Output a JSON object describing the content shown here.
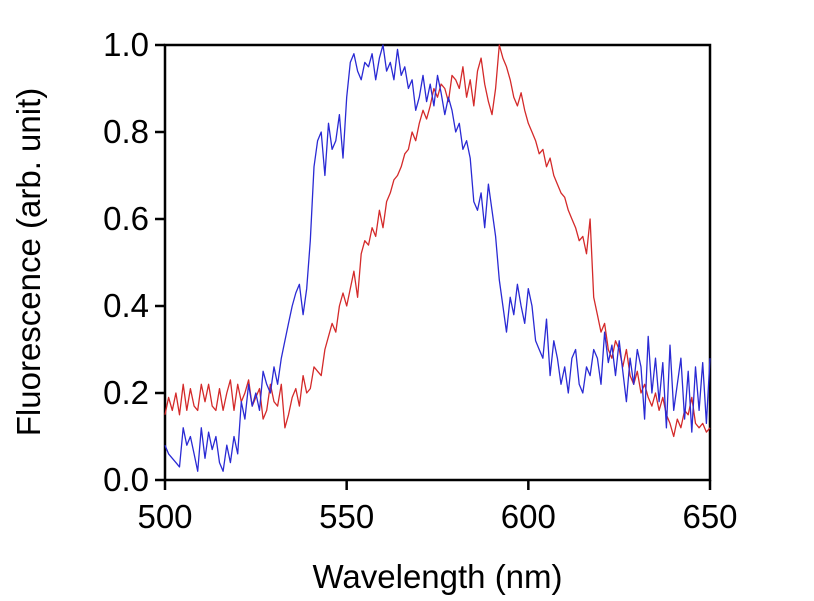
{
  "chart_data": {
    "type": "line",
    "title": "",
    "xlabel": "Wavelength (nm)",
    "ylabel": "Fluorescence (arb. unit)",
    "xlim": [
      500,
      650
    ],
    "ylim": [
      0.0,
      1.0
    ],
    "x_ticks": [
      "500",
      "550",
      "600",
      "650"
    ],
    "y_ticks": [
      "0.0",
      "0.2",
      "0.4",
      "0.6",
      "0.8",
      "1.0"
    ],
    "grid": false,
    "legend": "none",
    "series": [
      {
        "color": "#d42a2a",
        "x": [
          500,
          501,
          502,
          503,
          504,
          505,
          506,
          507,
          508,
          509,
          510,
          511,
          512,
          513,
          514,
          515,
          516,
          517,
          518,
          519,
          520,
          521,
          522,
          523,
          524,
          525,
          526,
          527,
          528,
          529,
          530,
          531,
          532,
          533,
          534,
          535,
          536,
          537,
          538,
          539,
          540,
          541,
          542,
          543,
          544,
          545,
          546,
          547,
          548,
          549,
          550,
          551,
          552,
          553,
          554,
          555,
          556,
          557,
          558,
          559,
          560,
          561,
          562,
          563,
          564,
          565,
          566,
          567,
          568,
          569,
          570,
          571,
          572,
          573,
          574,
          575,
          576,
          577,
          578,
          579,
          580,
          581,
          582,
          583,
          584,
          585,
          586,
          587,
          588,
          589,
          590,
          591,
          592,
          593,
          594,
          595,
          596,
          597,
          598,
          599,
          600,
          601,
          602,
          603,
          604,
          605,
          606,
          607,
          608,
          609,
          610,
          611,
          612,
          613,
          614,
          615,
          616,
          617,
          618,
          619,
          620,
          621,
          622,
          623,
          624,
          625,
          626,
          627,
          628,
          629,
          630,
          631,
          632,
          633,
          634,
          635,
          636,
          637,
          638,
          639,
          640,
          641,
          642,
          643,
          644,
          645,
          646,
          647,
          648,
          649,
          650
        ],
        "y": [
          0.15,
          0.19,
          0.16,
          0.2,
          0.15,
          0.22,
          0.16,
          0.21,
          0.17,
          0.16,
          0.22,
          0.18,
          0.22,
          0.17,
          0.16,
          0.21,
          0.16,
          0.2,
          0.23,
          0.16,
          0.22,
          0.18,
          0.2,
          0.23,
          0.17,
          0.19,
          0.21,
          0.14,
          0.16,
          0.22,
          0.18,
          0.17,
          0.22,
          0.12,
          0.15,
          0.19,
          0.21,
          0.17,
          0.24,
          0.2,
          0.21,
          0.26,
          0.25,
          0.24,
          0.3,
          0.33,
          0.36,
          0.34,
          0.4,
          0.43,
          0.4,
          0.44,
          0.48,
          0.42,
          0.52,
          0.55,
          0.54,
          0.58,
          0.56,
          0.62,
          0.58,
          0.64,
          0.66,
          0.69,
          0.7,
          0.72,
          0.75,
          0.76,
          0.8,
          0.78,
          0.82,
          0.85,
          0.83,
          0.86,
          0.9,
          0.88,
          0.91,
          0.9,
          0.87,
          0.93,
          0.92,
          0.9,
          0.95,
          0.88,
          0.92,
          0.86,
          0.94,
          0.97,
          0.91,
          0.87,
          0.84,
          0.9,
          1.0,
          0.97,
          0.95,
          0.92,
          0.88,
          0.86,
          0.89,
          0.85,
          0.82,
          0.8,
          0.78,
          0.75,
          0.76,
          0.72,
          0.74,
          0.7,
          0.68,
          0.66,
          0.65,
          0.62,
          0.6,
          0.58,
          0.55,
          0.56,
          0.52,
          0.6,
          0.42,
          0.38,
          0.34,
          0.36,
          0.3,
          0.28,
          0.32,
          0.3,
          0.26,
          0.3,
          0.24,
          0.22,
          0.25,
          0.2,
          0.22,
          0.19,
          0.17,
          0.2,
          0.16,
          0.19,
          0.15,
          0.13,
          0.1,
          0.14,
          0.12,
          0.16,
          0.15,
          0.19,
          0.13,
          0.12,
          0.13,
          0.11,
          0.12
        ]
      },
      {
        "color": "#2a2ad4",
        "x": [
          500,
          501,
          502,
          503,
          504,
          505,
          506,
          507,
          508,
          509,
          510,
          511,
          512,
          513,
          514,
          515,
          516,
          517,
          518,
          519,
          520,
          521,
          522,
          523,
          524,
          525,
          526,
          527,
          528,
          529,
          530,
          531,
          532,
          533,
          534,
          535,
          536,
          537,
          538,
          539,
          540,
          541,
          542,
          543,
          544,
          545,
          546,
          547,
          548,
          549,
          550,
          551,
          552,
          553,
          554,
          555,
          556,
          557,
          558,
          559,
          560,
          561,
          562,
          563,
          564,
          565,
          566,
          567,
          568,
          569,
          570,
          571,
          572,
          573,
          574,
          575,
          576,
          577,
          578,
          579,
          580,
          581,
          582,
          583,
          584,
          585,
          586,
          587,
          588,
          589,
          590,
          591,
          592,
          593,
          594,
          595,
          596,
          597,
          598,
          599,
          600,
          601,
          602,
          603,
          604,
          605,
          606,
          607,
          608,
          609,
          610,
          611,
          612,
          613,
          614,
          615,
          616,
          617,
          618,
          619,
          620,
          621,
          622,
          623,
          624,
          625,
          626,
          627,
          628,
          629,
          630,
          631,
          632,
          633,
          634,
          635,
          636,
          637,
          638,
          639,
          640,
          641,
          642,
          643,
          644,
          645,
          646,
          647,
          648,
          649,
          650
        ],
        "y": [
          0.08,
          0.06,
          0.05,
          0.04,
          0.03,
          0.12,
          0.08,
          0.1,
          0.06,
          0.02,
          0.12,
          0.05,
          0.11,
          0.07,
          0.1,
          0.04,
          0.02,
          0.08,
          0.04,
          0.1,
          0.06,
          0.18,
          0.14,
          0.22,
          0.17,
          0.2,
          0.16,
          0.25,
          0.22,
          0.2,
          0.26,
          0.22,
          0.28,
          0.32,
          0.36,
          0.4,
          0.43,
          0.45,
          0.38,
          0.44,
          0.55,
          0.72,
          0.78,
          0.8,
          0.7,
          0.82,
          0.76,
          0.78,
          0.84,
          0.74,
          0.88,
          0.96,
          0.98,
          0.94,
          0.92,
          0.96,
          0.95,
          0.98,
          0.92,
          0.97,
          1.0,
          0.94,
          0.96,
          0.92,
          0.99,
          0.93,
          0.95,
          0.9,
          0.92,
          0.85,
          0.88,
          0.93,
          0.87,
          0.91,
          0.86,
          0.93,
          0.89,
          0.84,
          0.88,
          0.85,
          0.8,
          0.82,
          0.76,
          0.78,
          0.74,
          0.64,
          0.62,
          0.66,
          0.58,
          0.68,
          0.62,
          0.56,
          0.46,
          0.4,
          0.34,
          0.42,
          0.38,
          0.45,
          0.4,
          0.36,
          0.44,
          0.4,
          0.32,
          0.3,
          0.28,
          0.37,
          0.24,
          0.32,
          0.28,
          0.22,
          0.26,
          0.2,
          0.28,
          0.3,
          0.22,
          0.2,
          0.26,
          0.24,
          0.3,
          0.28,
          0.22,
          0.34,
          0.27,
          0.31,
          0.24,
          0.32,
          0.25,
          0.18,
          0.28,
          0.22,
          0.3,
          0.26,
          0.14,
          0.33,
          0.2,
          0.28,
          0.18,
          0.27,
          0.12,
          0.31,
          0.16,
          0.22,
          0.28,
          0.14,
          0.25,
          0.11,
          0.26,
          0.16,
          0.27,
          0.13,
          0.28
        ]
      }
    ]
  }
}
